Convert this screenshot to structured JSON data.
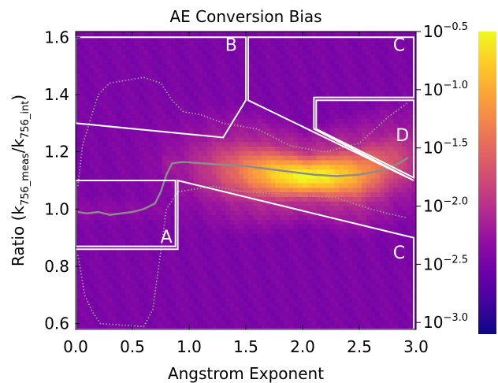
{
  "chart_data": {
    "type": "heatmap",
    "title": "AE Conversion Bias",
    "xlabel": "Angstrom Exponent",
    "ylabel_parts": {
      "pre": "Ratio (k",
      "sub1": "756_meas",
      "mid": "/k",
      "sub2": "756_int",
      "post": ")"
    },
    "xlim": [
      0.0,
      3.0
    ],
    "ylim": [
      0.58,
      1.62
    ],
    "x_ticks": [
      "0.0",
      "0.5",
      "1.0",
      "1.5",
      "2.0",
      "2.5",
      "3.0"
    ],
    "y_ticks": [
      "0.6",
      "0.8",
      "1.0",
      "1.2",
      "1.4",
      "1.6"
    ],
    "colorbar": {
      "scale": "log10",
      "range": [
        -3.1,
        -0.5
      ],
      "ticks": [
        {
          "base": "10",
          "exp": "−0.5",
          "value": -0.5
        },
        {
          "base": "10",
          "exp": "−1.0",
          "value": -1.0
        },
        {
          "base": "10",
          "exp": "−1.5",
          "value": -1.5
        },
        {
          "base": "10",
          "exp": "−2.0",
          "value": -2.0
        },
        {
          "base": "10",
          "exp": "−2.5",
          "value": -2.5
        },
        {
          "base": "10",
          "exp": "−3.0",
          "value": -3.0
        }
      ],
      "colormap": [
        "#0c0786",
        "#41049d",
        "#6a00a8",
        "#8f0da4",
        "#b12a90",
        "#cc4778",
        "#e16462",
        "#f2844b",
        "#fca636",
        "#fcce25",
        "#f0f921"
      ]
    },
    "density_model": {
      "peak_x": 2.05,
      "peak_y": 1.115,
      "ridge_points": [
        [
          0.8,
          1.16
        ],
        [
          1.3,
          1.14
        ],
        [
          1.6,
          1.13
        ],
        [
          2.0,
          1.115
        ],
        [
          2.5,
          1.12
        ],
        [
          2.9,
          1.17
        ]
      ]
    },
    "median_line": [
      [
        0.02,
        0.99
      ],
      [
        0.1,
        0.985
      ],
      [
        0.2,
        0.99
      ],
      [
        0.3,
        0.98
      ],
      [
        0.4,
        0.985
      ],
      [
        0.5,
        0.99
      ],
      [
        0.6,
        1.0
      ],
      [
        0.7,
        1.02
      ],
      [
        0.75,
        1.06
      ],
      [
        0.8,
        1.12
      ],
      [
        0.85,
        1.16
      ],
      [
        0.95,
        1.165
      ],
      [
        1.1,
        1.16
      ],
      [
        1.3,
        1.155
      ],
      [
        1.5,
        1.15
      ],
      [
        1.7,
        1.14
      ],
      [
        1.9,
        1.13
      ],
      [
        2.1,
        1.12
      ],
      [
        2.3,
        1.115
      ],
      [
        2.5,
        1.12
      ],
      [
        2.7,
        1.135
      ],
      [
        2.85,
        1.16
      ],
      [
        2.93,
        1.18
      ]
    ],
    "upper_dotted": [
      [
        0.02,
        1.08
      ],
      [
        0.06,
        1.22
      ],
      [
        0.12,
        1.3
      ],
      [
        0.2,
        1.4
      ],
      [
        0.3,
        1.44
      ],
      [
        0.45,
        1.45
      ],
      [
        0.6,
        1.46
      ],
      [
        0.75,
        1.44
      ],
      [
        0.85,
        1.38
      ],
      [
        0.95,
        1.34
      ],
      [
        1.1,
        1.33
      ],
      [
        1.3,
        1.3
      ],
      [
        1.6,
        1.28
      ],
      [
        1.9,
        1.22
      ],
      [
        2.2,
        1.2
      ],
      [
        2.5,
        1.23
      ],
      [
        2.75,
        1.32
      ],
      [
        2.92,
        1.37
      ]
    ],
    "lower_dotted": [
      [
        0.02,
        0.84
      ],
      [
        0.08,
        0.7
      ],
      [
        0.15,
        0.64
      ],
      [
        0.22,
        0.6
      ],
      [
        0.6,
        0.59
      ],
      [
        0.68,
        0.65
      ],
      [
        0.75,
        0.85
      ],
      [
        0.8,
        1.0
      ],
      [
        0.9,
        1.06
      ],
      [
        1.2,
        1.08
      ],
      [
        1.5,
        1.06
      ],
      [
        1.9,
        1.05
      ],
      [
        2.3,
        1.04
      ],
      [
        2.6,
        1.0
      ],
      [
        2.8,
        0.98
      ],
      [
        2.92,
        0.97
      ]
    ],
    "regions": [
      {
        "label": "A",
        "label_pos": [
          0.8,
          0.9
        ],
        "polygon": [
          [
            0.0,
            1.1
          ],
          [
            0.88,
            1.1
          ],
          [
            0.88,
            0.87
          ],
          [
            0.0,
            0.87
          ]
        ]
      },
      {
        "label": "B",
        "label_pos": [
          1.37,
          1.57
        ],
        "polygon": [
          [
            0.0,
            1.6
          ],
          [
            1.5,
            1.6
          ],
          [
            1.5,
            1.38
          ],
          [
            1.3,
            1.25
          ],
          [
            0.0,
            1.3
          ]
        ]
      },
      {
        "label": "C",
        "label_pos": [
          2.85,
          1.57
        ],
        "polygon": [
          [
            1.52,
            1.6
          ],
          [
            2.98,
            1.6
          ],
          [
            2.98,
            1.39
          ],
          [
            2.1,
            1.39
          ],
          [
            2.1,
            1.28
          ],
          [
            2.98,
            1.1
          ],
          [
            1.52,
            1.38
          ]
        ]
      },
      {
        "label": "D",
        "label_pos": [
          2.88,
          1.255
        ],
        "polygon": [
          [
            2.12,
            1.38
          ],
          [
            2.98,
            1.38
          ],
          [
            2.98,
            1.11
          ],
          [
            2.12,
            1.28
          ]
        ]
      },
      {
        "label": "C",
        "label_pos": [
          2.85,
          0.845
        ],
        "polygon": [
          [
            0.9,
            1.1
          ],
          [
            2.98,
            0.9
          ],
          [
            2.98,
            0.58
          ],
          [
            0.0,
            0.58
          ],
          [
            0.0,
            0.86
          ],
          [
            0.9,
            0.86
          ]
        ]
      }
    ]
  }
}
